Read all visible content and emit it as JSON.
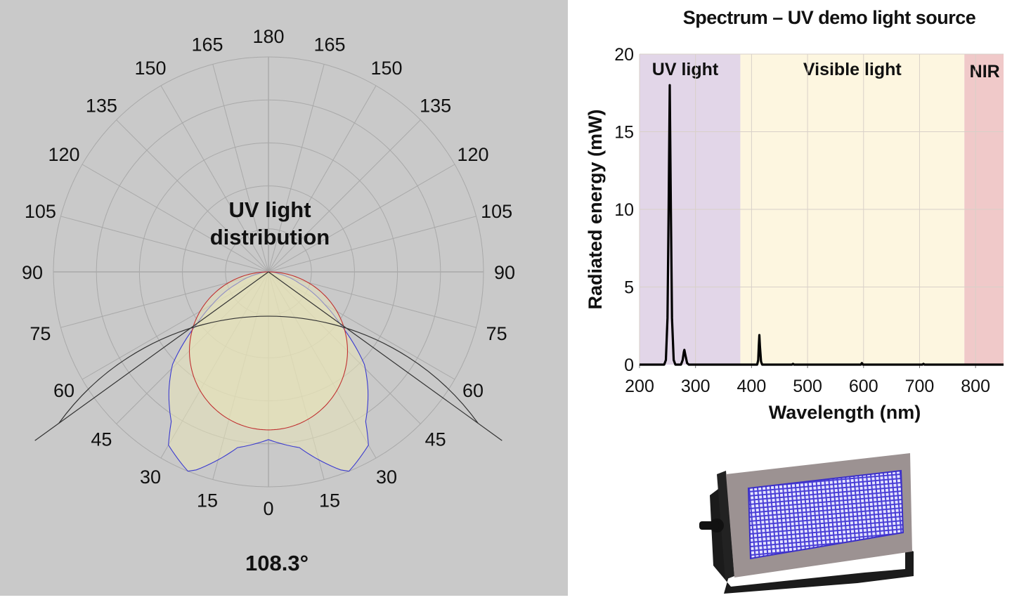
{
  "chart_data": [
    {
      "type": "polar",
      "title": "UV light distribution",
      "title_lines": [
        "UV light",
        "distribution"
      ],
      "angle_labels_left": [
        "0",
        "15",
        "30",
        "45",
        "60",
        "75",
        "90",
        "105",
        "120",
        "135",
        "150",
        "165",
        "180"
      ],
      "angle_labels_right": [
        "15",
        "30",
        "45",
        "60",
        "75",
        "90",
        "105",
        "120",
        "135",
        "150",
        "165"
      ],
      "radial_scale": "relative, outer ring = 1.0 (no printed values)",
      "angles_deg": [
        0,
        10,
        20,
        22,
        30,
        33,
        40,
        46,
        54,
        60,
        70,
        80,
        90
      ],
      "series": [
        {
          "color": "#3a3ad0",
          "values": [
            0.78,
            0.83,
            0.98,
            1.0,
            0.93,
            0.83,
            0.72,
            0.62,
            0.41,
            0.3,
            0.15,
            0.05,
            0
          ]
        },
        {
          "color": "#c03030",
          "values": [
            0.735,
            0.724,
            0.691,
            0.681,
            0.637,
            0.616,
            0.563,
            0.511,
            0.432,
            0.368,
            0.251,
            0.128,
            0
          ]
        }
      ],
      "beam_angle_label": "108.3°",
      "beam_angle_deg": 108.3,
      "fill_color": "#e8e4b8",
      "background": "#c9c9c9"
    },
    {
      "type": "line",
      "title": "Spectrum – UV demo light source",
      "xlabel": "Wavelength (nm)",
      "ylabel": "Radiated energy (mW)",
      "xlim": [
        200,
        850
      ],
      "ylim": [
        0,
        20
      ],
      "xticks": [
        "200",
        "300",
        "400",
        "500",
        "600",
        "700",
        "800"
      ],
      "yticks": [
        "0",
        "5",
        "10",
        "15",
        "20"
      ],
      "grid": true,
      "bands": [
        {
          "label": "UV light",
          "from": 200,
          "to": 380,
          "color": "#e2d6e8"
        },
        {
          "label": "Visible light",
          "from": 380,
          "to": 780,
          "color": "#fdf6e0"
        },
        {
          "label": "NIR",
          "from": 780,
          "to": 850,
          "color": "#f0c9c9"
        }
      ],
      "points": [
        [
          200,
          0
        ],
        [
          244,
          0
        ],
        [
          247,
          0.3
        ],
        [
          250,
          3
        ],
        [
          252,
          10
        ],
        [
          254,
          18
        ],
        [
          256,
          10
        ],
        [
          258,
          3
        ],
        [
          261,
          0.3
        ],
        [
          264,
          0
        ],
        [
          274,
          0
        ],
        [
          277,
          0.3
        ],
        [
          279,
          0.8
        ],
        [
          280,
          0.95
        ],
        [
          282,
          0.6
        ],
        [
          285,
          0.1
        ],
        [
          288,
          0
        ],
        [
          410,
          0
        ],
        [
          412,
          0.3
        ],
        [
          413,
          1.2
        ],
        [
          414,
          1.9
        ],
        [
          415,
          1.2
        ],
        [
          417,
          0.2
        ],
        [
          419,
          0
        ],
        [
          472,
          0
        ],
        [
          474,
          0.05
        ],
        [
          476,
          0
        ],
        [
          595,
          0
        ],
        [
          597,
          0.1
        ],
        [
          599,
          0
        ],
        [
          705,
          0
        ],
        [
          707,
          0.05
        ],
        [
          709,
          0
        ],
        [
          850,
          0
        ]
      ]
    }
  ],
  "product_image": {
    "label": "UV LED floodlight fixture"
  }
}
